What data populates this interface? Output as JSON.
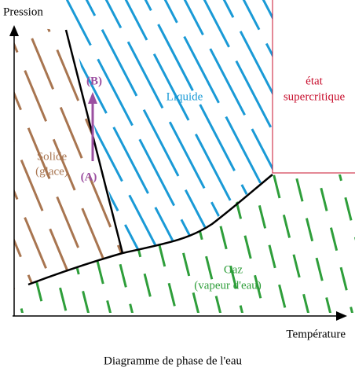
{
  "axes": {
    "y_label": "Pression",
    "x_label": "Température"
  },
  "regions": {
    "solid": {
      "label": "Solide",
      "sublabel": "(glace)"
    },
    "liquid": {
      "label": "Liquide"
    },
    "gas": {
      "label": "Gaz",
      "sublabel": "(vapeur d'eau)"
    },
    "supercritical": {
      "label": "état",
      "sublabel": "supercritique"
    }
  },
  "points": {
    "a": "(A)",
    "b": "(B)"
  },
  "caption": "Diagramme de phase de l'eau"
}
